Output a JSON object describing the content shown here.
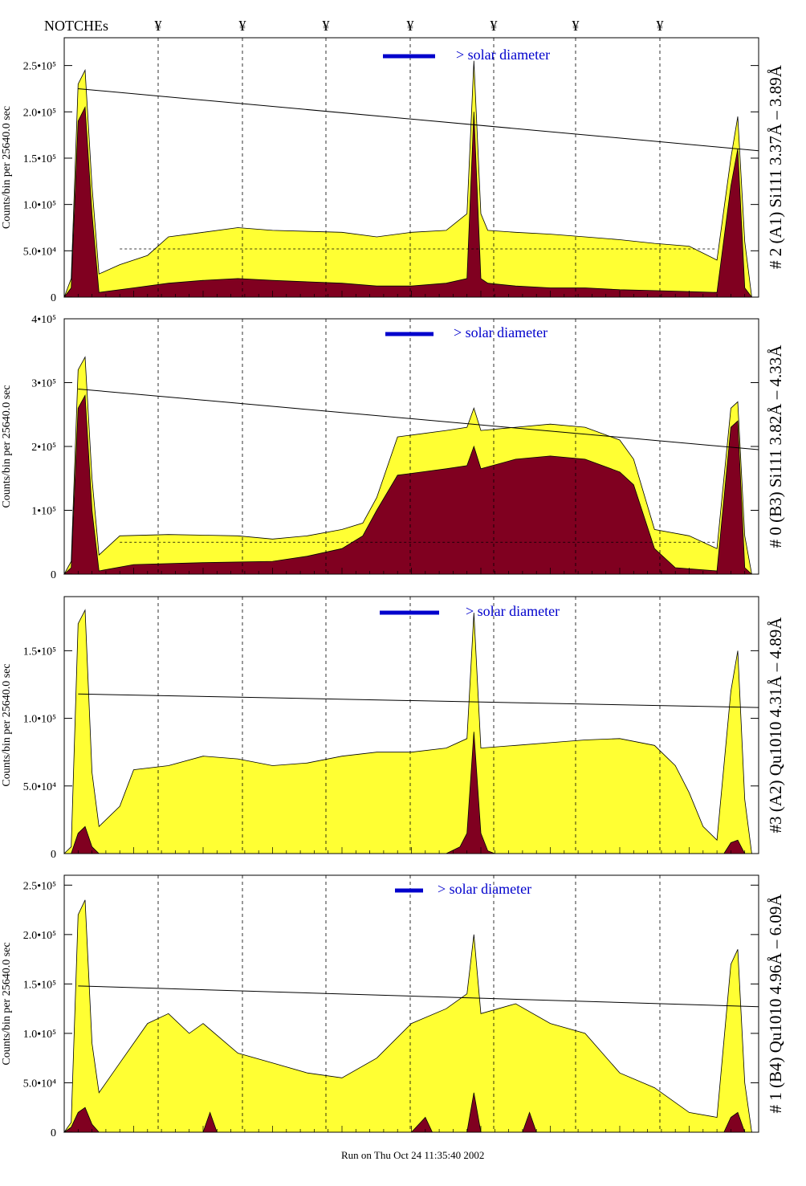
{
  "header": {
    "notches_label": "NOTCHEs",
    "notch_symbol": "¥"
  },
  "footer": {
    "run_text": "Run on Thu Oct 24 11:35:40 2002"
  },
  "colors": {
    "fill_total": "#ffff33",
    "fill_subset": "#800020",
    "solar_bar": "#0000cc",
    "line_color": "#000000"
  },
  "chart_data": [
    {
      "type": "area",
      "panel_label": "# 2 (A1) Si111  3.37Å – 3.89Å",
      "ylabel": "Counts/bin per  25640.0 sec",
      "y_ticks": [
        {
          "v": 0,
          "label": "0"
        },
        {
          "v": 50000,
          "label": "5.0•10⁴"
        },
        {
          "v": 100000,
          "label": "1.0•10⁵"
        },
        {
          "v": 150000,
          "label": "1.5•10⁵"
        },
        {
          "v": 200000,
          "label": "2.0•10⁵"
        },
        {
          "v": 250000,
          "label": "2.5•10⁵"
        }
      ],
      "ylim": [
        0,
        280000
      ],
      "annotation": "> solar diameter",
      "series": [
        {
          "name": "",
          "points": [
            [
              0,
              0
            ],
            [
              1,
              20000
            ],
            [
              2,
              230000
            ],
            [
              3,
              245000
            ],
            [
              4,
              120000
            ],
            [
              5,
              25000
            ],
            [
              8,
              35000
            ],
            [
              12,
              45000
            ],
            [
              15,
              65000
            ],
            [
              20,
              70000
            ],
            [
              25,
              75000
            ],
            [
              30,
              72000
            ],
            [
              40,
              70000
            ],
            [
              45,
              65000
            ],
            [
              50,
              70000
            ],
            [
              55,
              72000
            ],
            [
              58,
              90000
            ],
            [
              59,
              255000
            ],
            [
              60,
              90000
            ],
            [
              61,
              72000
            ],
            [
              65,
              70000
            ],
            [
              70,
              68000
            ],
            [
              75,
              65000
            ],
            [
              80,
              62000
            ],
            [
              85,
              58000
            ],
            [
              90,
              55000
            ],
            [
              94,
              40000
            ],
            [
              96,
              150000
            ],
            [
              97,
              195000
            ],
            [
              98,
              60000
            ],
            [
              99,
              0
            ],
            [
              100,
              0
            ]
          ]
        },
        {
          "name": "",
          "points": [
            [
              0,
              0
            ],
            [
              1,
              10000
            ],
            [
              2,
              190000
            ],
            [
              3,
              205000
            ],
            [
              4,
              90000
            ],
            [
              5,
              5000
            ],
            [
              10,
              10000
            ],
            [
              15,
              15000
            ],
            [
              20,
              18000
            ],
            [
              25,
              20000
            ],
            [
              30,
              18000
            ],
            [
              40,
              15000
            ],
            [
              45,
              12000
            ],
            [
              50,
              12000
            ],
            [
              55,
              15000
            ],
            [
              58,
              20000
            ],
            [
              59,
              200000
            ],
            [
              60,
              20000
            ],
            [
              61,
              15000
            ],
            [
              65,
              12000
            ],
            [
              70,
              10000
            ],
            [
              75,
              10000
            ],
            [
              80,
              8000
            ],
            [
              85,
              7000
            ],
            [
              90,
              6000
            ],
            [
              94,
              5000
            ],
            [
              96,
              120000
            ],
            [
              97,
              160000
            ],
            [
              98,
              10000
            ],
            [
              99,
              0
            ],
            [
              100,
              0
            ]
          ]
        }
      ],
      "trend_line": [
        [
          2,
          225000
        ],
        [
          100,
          158000
        ]
      ],
      "dashed_level": 52000
    },
    {
      "type": "area",
      "panel_label": "# 0 (B3) Si111  3.82Å – 4.33Å",
      "ylabel": "Counts/bin per  25640.0 sec",
      "y_ticks": [
        {
          "v": 0,
          "label": "0"
        },
        {
          "v": 100000,
          "label": "1•10⁵"
        },
        {
          "v": 200000,
          "label": "2•10⁵"
        },
        {
          "v": 300000,
          "label": "3•10⁵"
        },
        {
          "v": 400000,
          "label": "4•10⁵"
        }
      ],
      "ylim": [
        0,
        400000
      ],
      "annotation": "> solar diameter",
      "series": [
        {
          "name": "",
          "points": [
            [
              0,
              0
            ],
            [
              1,
              20000
            ],
            [
              2,
              320000
            ],
            [
              3,
              340000
            ],
            [
              4,
              150000
            ],
            [
              5,
              30000
            ],
            [
              8,
              60000
            ],
            [
              15,
              62000
            ],
            [
              25,
              60000
            ],
            [
              30,
              55000
            ],
            [
              35,
              60000
            ],
            [
              40,
              70000
            ],
            [
              43,
              80000
            ],
            [
              45,
              120000
            ],
            [
              48,
              215000
            ],
            [
              55,
              225000
            ],
            [
              58,
              230000
            ],
            [
              59,
              260000
            ],
            [
              60,
              225000
            ],
            [
              65,
              230000
            ],
            [
              70,
              235000
            ],
            [
              75,
              230000
            ],
            [
              80,
              210000
            ],
            [
              82,
              180000
            ],
            [
              85,
              70000
            ],
            [
              90,
              60000
            ],
            [
              94,
              40000
            ],
            [
              96,
              260000
            ],
            [
              97,
              270000
            ],
            [
              98,
              60000
            ],
            [
              99,
              0
            ],
            [
              100,
              0
            ]
          ]
        },
        {
          "name": "",
          "points": [
            [
              0,
              0
            ],
            [
              1,
              10000
            ],
            [
              2,
              260000
            ],
            [
              3,
              280000
            ],
            [
              4,
              100000
            ],
            [
              5,
              5000
            ],
            [
              10,
              15000
            ],
            [
              20,
              18000
            ],
            [
              30,
              20000
            ],
            [
              35,
              28000
            ],
            [
              40,
              40000
            ],
            [
              43,
              60000
            ],
            [
              45,
              100000
            ],
            [
              48,
              155000
            ],
            [
              55,
              165000
            ],
            [
              58,
              170000
            ],
            [
              59,
              200000
            ],
            [
              60,
              165000
            ],
            [
              65,
              180000
            ],
            [
              70,
              185000
            ],
            [
              75,
              180000
            ],
            [
              80,
              160000
            ],
            [
              82,
              140000
            ],
            [
              85,
              40000
            ],
            [
              88,
              10000
            ],
            [
              94,
              5000
            ],
            [
              96,
              230000
            ],
            [
              97,
              240000
            ],
            [
              98,
              10000
            ],
            [
              99,
              0
            ],
            [
              100,
              0
            ]
          ]
        }
      ],
      "trend_line": [
        [
          2,
          290000
        ],
        [
          100,
          195000
        ]
      ],
      "dashed_level": 50000
    },
    {
      "type": "area",
      "panel_label": "#3 (A2) Qu1010  4.31Å – 4.89Å",
      "ylabel": "Counts/bin per  25640.0 sec",
      "y_ticks": [
        {
          "v": 0,
          "label": "0"
        },
        {
          "v": 50000,
          "label": "5.0•10⁴"
        },
        {
          "v": 100000,
          "label": "1.0•10⁵"
        },
        {
          "v": 150000,
          "label": "1.5•10⁵"
        }
      ],
      "ylim": [
        0,
        190000
      ],
      "annotation": "> solar diameter",
      "series": [
        {
          "name": "",
          "points": [
            [
              0,
              0
            ],
            [
              1,
              5000
            ],
            [
              2,
              170000
            ],
            [
              3,
              180000
            ],
            [
              4,
              60000
            ],
            [
              5,
              20000
            ],
            [
              8,
              35000
            ],
            [
              10,
              62000
            ],
            [
              15,
              65000
            ],
            [
              20,
              72000
            ],
            [
              25,
              70000
            ],
            [
              30,
              65000
            ],
            [
              35,
              67000
            ],
            [
              40,
              72000
            ],
            [
              45,
              75000
            ],
            [
              50,
              75000
            ],
            [
              55,
              78000
            ],
            [
              58,
              85000
            ],
            [
              59,
              178000
            ],
            [
              60,
              78000
            ],
            [
              65,
              80000
            ],
            [
              70,
              82000
            ],
            [
              75,
              84000
            ],
            [
              80,
              85000
            ],
            [
              85,
              80000
            ],
            [
              88,
              65000
            ],
            [
              90,
              45000
            ],
            [
              92,
              20000
            ],
            [
              94,
              10000
            ],
            [
              96,
              120000
            ],
            [
              97,
              150000
            ],
            [
              98,
              40000
            ],
            [
              99,
              0
            ],
            [
              100,
              0
            ]
          ]
        },
        {
          "name": "",
          "points": [
            [
              0,
              0
            ],
            [
              1,
              0
            ],
            [
              2,
              15000
            ],
            [
              3,
              20000
            ],
            [
              4,
              5000
            ],
            [
              5,
              0
            ],
            [
              55,
              0
            ],
            [
              57,
              5000
            ],
            [
              58,
              15000
            ],
            [
              59,
              90000
            ],
            [
              60,
              15000
            ],
            [
              61,
              2000
            ],
            [
              62,
              0
            ],
            [
              95,
              0
            ],
            [
              96,
              8000
            ],
            [
              97,
              10000
            ],
            [
              98,
              0
            ],
            [
              100,
              0
            ]
          ]
        }
      ],
      "trend_line": [
        [
          2,
          118000
        ],
        [
          100,
          108000
        ]
      ],
      "dashed_level": null
    },
    {
      "type": "area",
      "panel_label": "# 1 (B4) Qu1010 4.96Å – 6.09Å",
      "ylabel": "Counts/bin per  25640.0 sec",
      "y_ticks": [
        {
          "v": 0,
          "label": "0"
        },
        {
          "v": 50000,
          "label": "5.0•10⁴"
        },
        {
          "v": 100000,
          "label": "1.0•10⁵"
        },
        {
          "v": 150000,
          "label": "1.5•10⁵"
        },
        {
          "v": 200000,
          "label": "2.0•10⁵"
        },
        {
          "v": 250000,
          "label": "2.5•10⁵"
        }
      ],
      "ylim": [
        0,
        260000
      ],
      "annotation": "> solar diameter",
      "series": [
        {
          "name": "",
          "points": [
            [
              0,
              0
            ],
            [
              1,
              10000
            ],
            [
              2,
              220000
            ],
            [
              3,
              235000
            ],
            [
              4,
              90000
            ],
            [
              5,
              40000
            ],
            [
              8,
              70000
            ],
            [
              12,
              110000
            ],
            [
              15,
              120000
            ],
            [
              18,
              100000
            ],
            [
              20,
              110000
            ],
            [
              25,
              80000
            ],
            [
              30,
              70000
            ],
            [
              35,
              60000
            ],
            [
              40,
              55000
            ],
            [
              45,
              75000
            ],
            [
              50,
              110000
            ],
            [
              55,
              125000
            ],
            [
              58,
              140000
            ],
            [
              59,
              200000
            ],
            [
              60,
              120000
            ],
            [
              65,
              130000
            ],
            [
              70,
              110000
            ],
            [
              75,
              100000
            ],
            [
              80,
              60000
            ],
            [
              85,
              45000
            ],
            [
              90,
              20000
            ],
            [
              94,
              15000
            ],
            [
              96,
              170000
            ],
            [
              97,
              185000
            ],
            [
              98,
              50000
            ],
            [
              99,
              0
            ],
            [
              100,
              0
            ]
          ]
        },
        {
          "name": "",
          "points": [
            [
              0,
              0
            ],
            [
              1,
              5000
            ],
            [
              2,
              20000
            ],
            [
              3,
              25000
            ],
            [
              4,
              8000
            ],
            [
              5,
              0
            ],
            [
              20,
              0
            ],
            [
              21,
              20000
            ],
            [
              22,
              0
            ],
            [
              50,
              0
            ],
            [
              52,
              15000
            ],
            [
              53,
              0
            ],
            [
              58,
              0
            ],
            [
              59,
              40000
            ],
            [
              60,
              0
            ],
            [
              66,
              0
            ],
            [
              67,
              20000
            ],
            [
              68,
              0
            ],
            [
              95,
              0
            ],
            [
              96,
              15000
            ],
            [
              97,
              20000
            ],
            [
              98,
              0
            ],
            [
              100,
              0
            ]
          ]
        }
      ],
      "trend_line": [
        [
          2,
          148000
        ],
        [
          100,
          127000
        ]
      ],
      "dashed_level": null
    }
  ]
}
